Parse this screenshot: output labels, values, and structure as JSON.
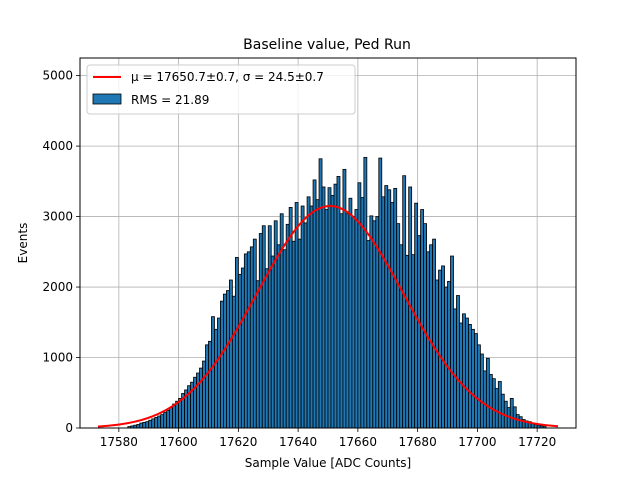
{
  "chart_data": {
    "type": "bar",
    "title": "Baseline value, Ped Run",
    "xlabel": "Sample Value [ADC Counts]",
    "ylabel": "Events",
    "xlim": [
      17567,
      17733
    ],
    "ylim": [
      0,
      5250
    ],
    "xticks": [
      17580,
      17600,
      17620,
      17640,
      17660,
      17680,
      17700,
      17720
    ],
    "yticks": [
      0,
      1000,
      2000,
      3000,
      4000,
      5000
    ],
    "grid": true,
    "legend_position": "top-left",
    "histogram": {
      "name": "RMS = 21.89",
      "bin_start": 17583,
      "bin_width": 1,
      "values": [
        20,
        30,
        40,
        50,
        70,
        80,
        90,
        110,
        130,
        150,
        170,
        190,
        220,
        250,
        290,
        340,
        380,
        420,
        490,
        540,
        600,
        650,
        720,
        780,
        850,
        950,
        1180,
        1230,
        1580,
        1400,
        1560,
        1800,
        1900,
        1950,
        2100,
        1870,
        2420,
        2180,
        2270,
        2470,
        2500,
        2570,
        2680,
        2090,
        2760,
        2870,
        2260,
        2870,
        2440,
        2940,
        2600,
        3040,
        2530,
        2890,
        3130,
        2650,
        3200,
        2680,
        3150,
        2910,
        3280,
        3150,
        3520,
        3240,
        3820,
        3420,
        3100,
        3410,
        3300,
        3460,
        3570,
        3040,
        3670,
        3040,
        3260,
        3000,
        3100,
        3480,
        3270,
        3840,
        2660,
        3010,
        2940,
        3000,
        3830,
        3280,
        3440,
        3380,
        3200,
        3400,
        2900,
        2600,
        3580,
        2450,
        3420,
        2460,
        3190,
        2730,
        3100,
        2900,
        2500,
        2600,
        2680,
        2100,
        2240,
        2300,
        2000,
        2080,
        2440,
        1690,
        1880,
        1490,
        1620,
        1560,
        1470,
        1400,
        1340,
        1180,
        1050,
        810,
        990,
        760,
        700,
        560,
        660,
        480,
        380,
        290,
        420,
        300,
        190,
        160,
        120,
        100,
        90,
        70,
        50,
        40,
        30,
        20
      ]
    },
    "fit": {
      "name": "μ = 17650.7±0.7, σ = 24.5±0.7",
      "mu": 17650.7,
      "sigma": 24.5,
      "amplitude": 3150,
      "x_range": [
        17573,
        17727
      ],
      "color": "#ff0000"
    },
    "bar_color": "#1f77b4"
  }
}
